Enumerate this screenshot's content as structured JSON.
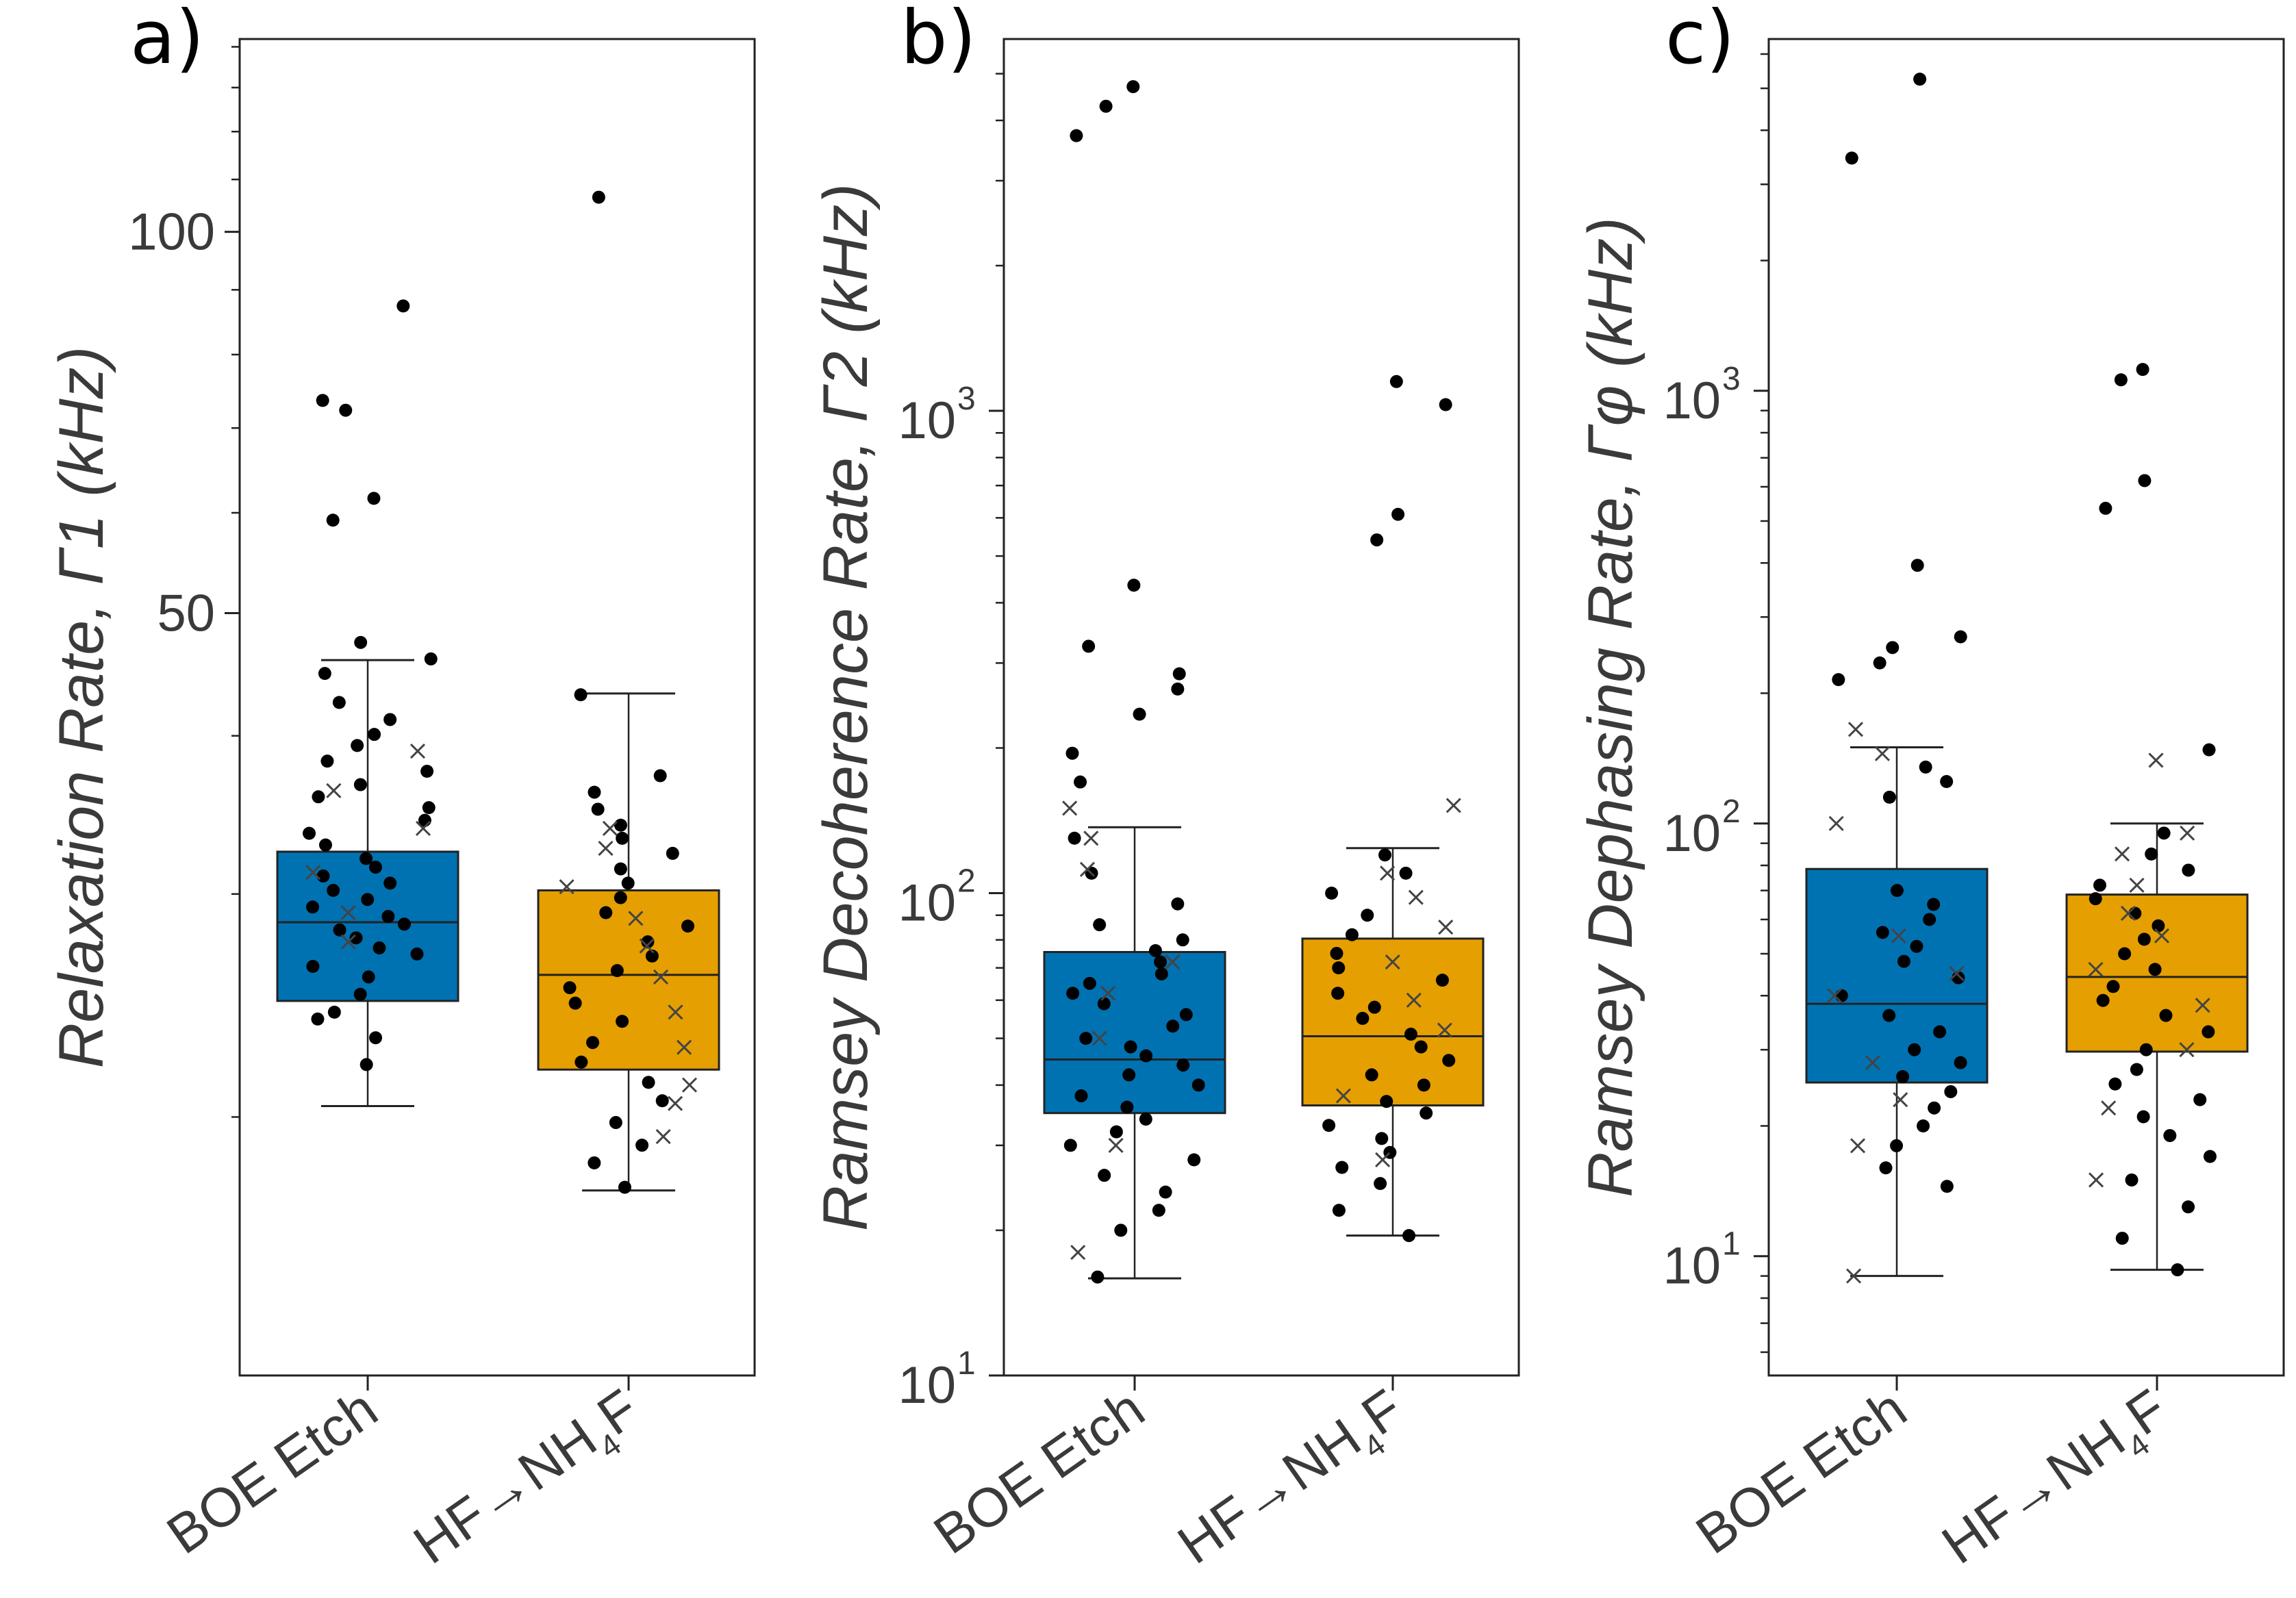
{
  "colors": {
    "boe": "#0072B2",
    "hf": "#E69F00",
    "point": "#000000",
    "frame": "#222222",
    "text": "#3a3a3a"
  },
  "chart_data": [
    {
      "panel": "a)",
      "type": "box",
      "ylabel": "Relaxation Rate, Γ1 (kHz)",
      "yscale": "log",
      "ylim": [
        12.5,
        142
      ],
      "ticks": [
        {
          "v": 50,
          "label": "50"
        },
        {
          "v": 100,
          "label": "100"
        }
      ],
      "minor_ticks": [
        20,
        30,
        40,
        60,
        70,
        80,
        90,
        110,
        120,
        130,
        140
      ],
      "categories": [
        {
          "main": "BOE Etch",
          "sub": ""
        },
        {
          "main": "HF→NH",
          "sub": "4",
          "tail": "F"
        }
      ],
      "boxes": [
        {
          "name": "BOE Etch",
          "lower_whisker": 20.4,
          "q1": 24.7,
          "median": 28.5,
          "q3": 32.4,
          "upper_whisker": 45.9,
          "dots": [
            22.0,
            23.1,
            23.9,
            24.2,
            25.0,
            25.8,
            26.3,
            26.9,
            27.2,
            27.7,
            28.1,
            28.4,
            28.8,
            29.3,
            29.7,
            30.2,
            30.6,
            31.0,
            31.5,
            32.0,
            32.8,
            33.5,
            34.3,
            35.1,
            35.8,
            36.6,
            37.5,
            38.2,
            39.3,
            40.1,
            41.2,
            42.5,
            44.8,
            46.0,
            47.4,
            59.2,
            61.6,
            72.3,
            73.6,
            87.4
          ],
          "crosses": [
            27.5,
            29.0,
            31.2,
            33.8,
            36.2,
            38.9
          ]
        },
        {
          "name": "HF→NH4F",
          "lower_whisker": 17.5,
          "q1": 21.8,
          "median": 25.9,
          "q3": 30.2,
          "upper_whisker": 43.2,
          "dots": [
            17.6,
            18.4,
            19.0,
            19.8,
            20.6,
            21.3,
            22.1,
            22.9,
            23.8,
            24.6,
            25.3,
            26.1,
            26.8,
            27.5,
            28.3,
            29.0,
            29.8,
            30.6,
            31.4,
            32.3,
            33.2,
            34.0,
            35.0,
            36.1,
            37.2,
            43.1,
            106.5
          ],
          "crosses": [
            19.3,
            20.5,
            21.2,
            22.7,
            24.2,
            25.8,
            27.3,
            28.7,
            30.4,
            32.6,
            33.8
          ]
        }
      ]
    },
    {
      "panel": "b)",
      "type": "box",
      "ylabel": "Ramsey Decoherence Rate, Γ2 (kHz)",
      "yscale": "log",
      "ylim": [
        10,
        5900
      ],
      "ticks": [
        {
          "v": 10,
          "base": "10",
          "exp": "1"
        },
        {
          "v": 100,
          "base": "10",
          "exp": "2"
        },
        {
          "v": 1000,
          "base": "10",
          "exp": "3"
        }
      ],
      "minor_ticks": [
        20,
        30,
        40,
        50,
        60,
        70,
        80,
        90,
        200,
        300,
        400,
        500,
        600,
        700,
        800,
        900,
        2000,
        3000,
        4000,
        5000
      ],
      "categories": [
        {
          "main": "BOE Etch",
          "sub": ""
        },
        {
          "main": "HF→NH",
          "sub": "4",
          "tail": "F"
        }
      ],
      "boxes": [
        {
          "name": "BOE Etch",
          "lower_whisker": 15.9,
          "q1": 35.0,
          "median": 45.2,
          "q3": 75.5,
          "upper_whisker": 137,
          "dots": [
            16,
            20,
            22,
            24,
            26,
            28,
            30,
            32,
            34,
            36,
            38,
            40,
            42,
            44,
            46,
            48,
            50,
            53,
            56,
            59,
            62,
            65,
            68,
            72,
            76,
            80,
            86,
            95,
            110,
            130,
            170,
            195,
            235,
            265,
            285,
            325,
            435,
            3720,
            4280,
            4700
          ],
          "crosses": [
            18,
            30,
            50,
            62,
            72,
            112,
            130,
            150
          ]
        },
        {
          "name": "HF→NH4F",
          "lower_whisker": 19.5,
          "q1": 36.3,
          "median": 50.5,
          "q3": 80.5,
          "upper_whisker": 124,
          "dots": [
            19.5,
            22,
            25,
            27,
            29,
            31,
            33,
            35,
            37,
            40,
            42,
            45,
            48,
            51,
            55,
            58,
            62,
            66,
            70,
            75,
            82,
            90,
            100,
            110,
            120,
            540,
            610,
            1030,
            1150
          ],
          "crosses": [
            28,
            38,
            52,
            60,
            72,
            85,
            98,
            110,
            152
          ]
        }
      ]
    },
    {
      "panel": "c)",
      "type": "box",
      "ylabel": "Ramsey Dephasing Rate, Γφ (kHz)",
      "yscale": "log",
      "ylim": [
        5.3,
        6500
      ],
      "ticks": [
        {
          "v": 10,
          "base": "10",
          "exp": "1"
        },
        {
          "v": 100,
          "base": "10",
          "exp": "2"
        },
        {
          "v": 1000,
          "base": "10",
          "exp": "3"
        }
      ],
      "minor_ticks": [
        6,
        7,
        8,
        9,
        20,
        30,
        40,
        50,
        60,
        70,
        80,
        90,
        200,
        300,
        400,
        500,
        600,
        700,
        800,
        900,
        2000,
        3000,
        4000,
        5000,
        6000
      ],
      "categories": [
        {
          "main": "BOE Etch",
          "sub": ""
        },
        {
          "main": "HF→NH",
          "sub": "4",
          "tail": "F"
        }
      ],
      "boxes": [
        {
          "name": "BOE Etch",
          "lower_whisker": 9.0,
          "q1": 25.2,
          "median": 38.3,
          "q3": 78.5,
          "upper_whisker": 150,
          "dots": [
            14.5,
            16,
            18,
            20,
            22,
            24,
            26,
            28,
            30,
            33,
            36,
            40,
            44,
            48,
            52,
            56,
            60,
            65,
            70,
            115,
            125,
            135,
            215,
            235,
            255,
            270,
            395,
            3450,
            5250
          ],
          "crosses": [
            9,
            18,
            23,
            28,
            40,
            45,
            55,
            100,
            145,
            165
          ]
        },
        {
          "name": "HF→NH4F",
          "lower_whisker": 9.3,
          "q1": 29.7,
          "median": 44.2,
          "q3": 68.5,
          "upper_whisker": 100,
          "dots": [
            9.3,
            11,
            13,
            15,
            17,
            19,
            21,
            23,
            25,
            27,
            30,
            33,
            36,
            39,
            42,
            46,
            50,
            54,
            58,
            62,
            67,
            72,
            78,
            85,
            95,
            148,
            535,
            620,
            1060,
            1120
          ],
          "crosses": [
            15,
            22,
            30,
            38,
            46,
            55,
            62,
            72,
            85,
            95,
            140
          ]
        }
      ]
    }
  ]
}
